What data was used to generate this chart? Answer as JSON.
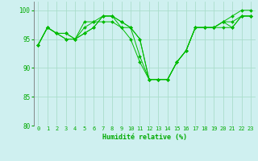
{
  "background_color": "#cff0f0",
  "grid_color": "#aaddcc",
  "line_color": "#00bb00",
  "marker_color": "#00bb00",
  "xlabel": "Humidité relative (%)",
  "xlabel_color": "#00aa00",
  "tick_color": "#00aa00",
  "ylim": [
    80,
    101.5
  ],
  "xlim": [
    -0.5,
    23.5
  ],
  "yticks": [
    80,
    85,
    90,
    95,
    100
  ],
  "xticks": [
    0,
    1,
    2,
    3,
    4,
    5,
    6,
    7,
    8,
    9,
    10,
    11,
    12,
    13,
    14,
    15,
    16,
    17,
    18,
    19,
    20,
    21,
    22,
    23
  ],
  "series": [
    [
      94,
      97,
      96,
      95,
      95,
      98,
      98,
      98,
      98,
      97,
      95,
      91,
      88,
      88,
      88,
      91,
      93,
      97,
      97,
      97,
      98,
      98,
      99,
      99
    ],
    [
      94,
      97,
      96,
      95,
      95,
      97,
      98,
      99,
      99,
      97,
      97,
      92,
      88,
      88,
      88,
      91,
      93,
      97,
      97,
      97,
      98,
      99,
      100,
      100
    ],
    [
      94,
      97,
      96,
      96,
      95,
      96,
      97,
      99,
      99,
      98,
      97,
      95,
      88,
      88,
      88,
      91,
      93,
      97,
      97,
      97,
      98,
      97,
      99,
      99
    ],
    [
      94,
      97,
      96,
      96,
      95,
      96,
      97,
      99,
      99,
      98,
      97,
      95,
      88,
      88,
      88,
      91,
      93,
      97,
      97,
      97,
      97,
      97,
      99,
      99
    ]
  ]
}
